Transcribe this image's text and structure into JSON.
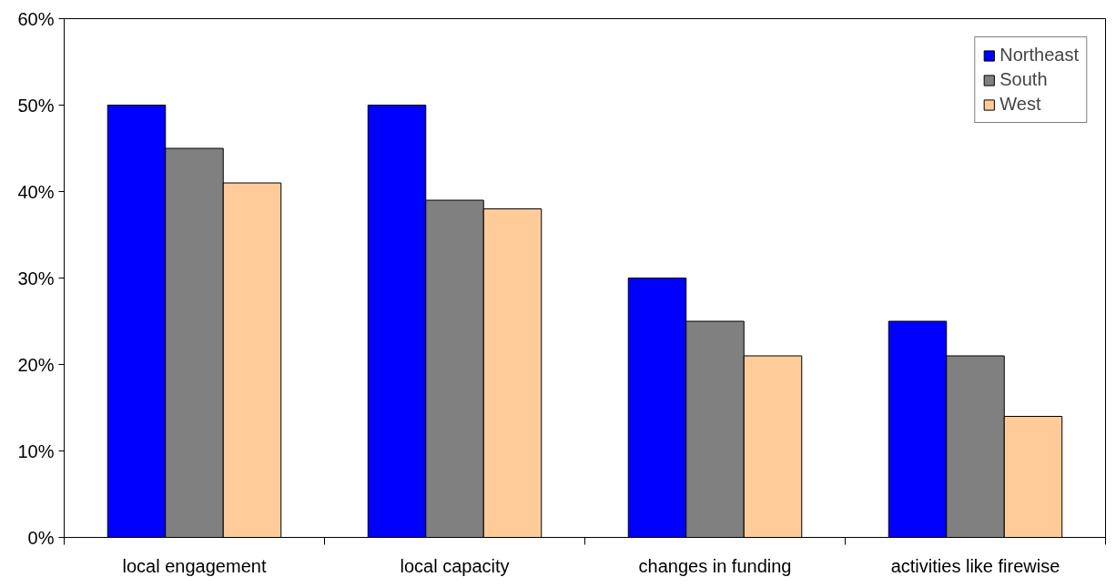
{
  "chart_data": {
    "type": "bar",
    "categories": [
      "local engagement",
      "local capacity",
      "changes in funding",
      "activities like firewise"
    ],
    "series": [
      {
        "name": "Northeast",
        "color": "#0000ff",
        "values": [
          50,
          50,
          30,
          25
        ]
      },
      {
        "name": "South",
        "color": "#808080",
        "values": [
          45,
          39,
          25,
          21
        ]
      },
      {
        "name": "West",
        "color": "#ffcc99",
        "values": [
          41,
          38,
          21,
          14
        ]
      }
    ],
    "ylim": [
      0,
      60
    ],
    "yticks": [
      {
        "value": 0,
        "label": "0%"
      },
      {
        "value": 10,
        "label": "10%"
      },
      {
        "value": 20,
        "label": "20%"
      },
      {
        "value": 30,
        "label": "30%"
      },
      {
        "value": 40,
        "label": "40%"
      },
      {
        "value": 50,
        "label": "50%"
      },
      {
        "value": 60,
        "label": "60%"
      }
    ],
    "grid": false,
    "legend": "top right"
  }
}
